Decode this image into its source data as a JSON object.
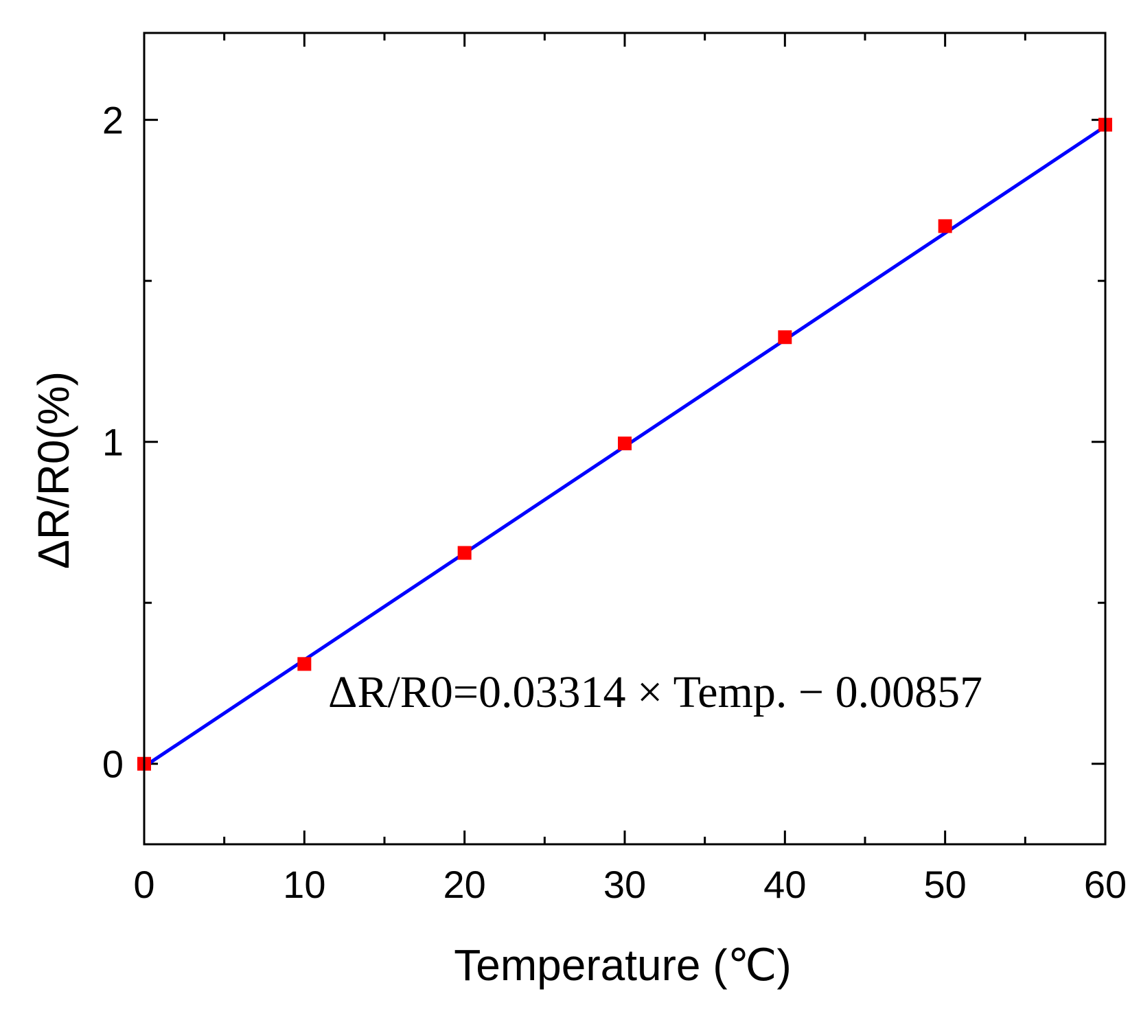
{
  "chart_data": {
    "type": "scatter",
    "title": "",
    "xlabel": "Temperature (℃)",
    "ylabel": "ΔR/R0(%)",
    "xlim": [
      0,
      60
    ],
    "ylim": [
      -0.25,
      2.27
    ],
    "x_ticks": [
      0,
      10,
      20,
      30,
      40,
      50,
      60
    ],
    "x_tick_labels": [
      "0",
      "10",
      "20",
      "30",
      "40",
      "50",
      "60"
    ],
    "x_minor_ticks": [
      5,
      15,
      25,
      35,
      45,
      55
    ],
    "y_ticks": [
      0,
      1,
      2
    ],
    "y_tick_labels": [
      "0",
      "1",
      "2"
    ],
    "y_minor_ticks": [
      0.5,
      1.5
    ],
    "grid": false,
    "legend": "none",
    "series": [
      {
        "type": "scatter",
        "marker": "square",
        "color": "#ff0000",
        "x": [
          0,
          10,
          20,
          30,
          40,
          50,
          60
        ],
        "y": [
          0.0,
          0.31,
          0.655,
          0.995,
          1.325,
          1.67,
          1.985
        ]
      },
      {
        "type": "line",
        "color": "#0000ff",
        "slope": 0.03314,
        "intercept": -0.00857,
        "x": [
          0,
          60
        ]
      }
    ],
    "annotations": [
      {
        "text": "ΔR/R0=0.03314 × Temp. − 0.00857"
      }
    ]
  }
}
